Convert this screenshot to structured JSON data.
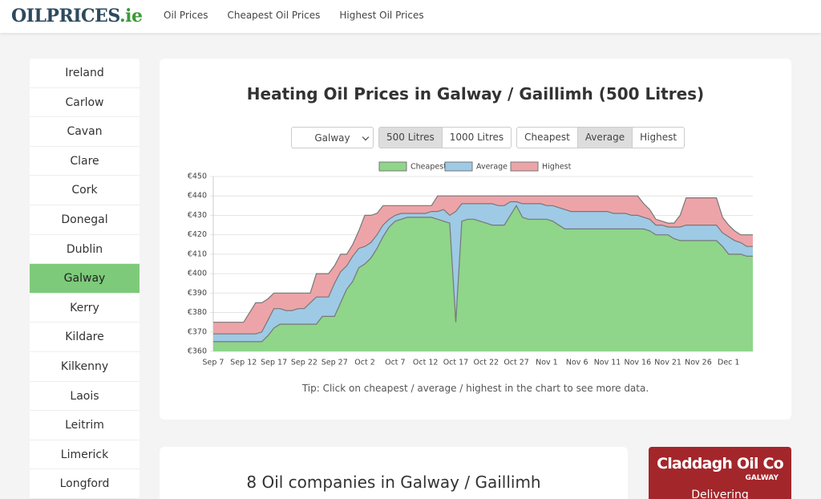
{
  "header": {
    "logo": {
      "main": "OILPRICES",
      "suffix": ".ie"
    },
    "nav": [
      "Oil Prices",
      "Cheapest Oil Prices",
      "Highest Oil Prices"
    ]
  },
  "sidebar": {
    "counties": [
      {
        "name": "Ireland"
      },
      {
        "name": "Carlow"
      },
      {
        "name": "Cavan"
      },
      {
        "name": "Clare"
      },
      {
        "name": "Cork"
      },
      {
        "name": "Donegal"
      },
      {
        "name": "Dublin"
      },
      {
        "name": "Galway",
        "active": true
      },
      {
        "name": "Kerry"
      },
      {
        "name": "Kildare"
      },
      {
        "name": "Kilkenny"
      },
      {
        "name": "Laois"
      },
      {
        "name": "Leitrim"
      },
      {
        "name": "Limerick"
      },
      {
        "name": "Longford"
      }
    ]
  },
  "controls": {
    "county_select": "Galway",
    "volume_buttons": [
      {
        "label": "500 Litres",
        "active": true
      },
      {
        "label": "1000 Litres"
      }
    ],
    "price_buttons": [
      {
        "label": "Cheapest"
      },
      {
        "label": "Average",
        "active": true
      },
      {
        "label": "Highest"
      }
    ]
  },
  "chart_data": {
    "type": "area",
    "title": "Heating Oil Prices in Galway / Gaillimh (500 Litres)",
    "categories": [
      "Sep 7",
      null,
      null,
      null,
      null,
      "Sep 12",
      null,
      null,
      null,
      null,
      "Sep 17",
      null,
      null,
      null,
      null,
      "Sep 22",
      null,
      null,
      null,
      null,
      "Sep 27",
      null,
      null,
      null,
      null,
      "Oct 2",
      null,
      null,
      null,
      null,
      "Oct 7",
      null,
      null,
      null,
      null,
      "Oct 12",
      null,
      null,
      null,
      null,
      "Oct 17",
      null,
      null,
      null,
      null,
      "Oct 22",
      null,
      null,
      null,
      null,
      "Oct 27",
      null,
      null,
      null,
      null,
      "Nov 1",
      null,
      null,
      null,
      null,
      "Nov 6",
      null,
      null,
      null,
      null,
      "Nov 11",
      null,
      null,
      null,
      null,
      "Nov 16",
      null,
      null,
      null,
      null,
      "Nov 21",
      null,
      null,
      null,
      null,
      "Nov 26",
      null,
      null,
      null,
      null,
      "Dec 1",
      null,
      null,
      null,
      null
    ],
    "series": [
      {
        "name": "Cheapest",
        "color": "#8fd58a",
        "values": [
          365,
          365,
          365,
          365,
          365,
          365,
          365,
          365,
          365,
          368,
          372,
          374,
          374,
          374,
          374,
          374,
          374,
          374,
          378,
          378,
          378,
          385,
          392,
          396,
          403,
          405,
          408,
          413,
          419,
          424,
          427,
          428,
          429,
          429,
          429,
          429,
          429,
          428,
          427,
          426,
          375,
          427,
          428,
          428,
          427,
          426,
          425,
          425,
          425,
          430,
          435,
          429,
          428,
          428,
          428,
          428,
          427,
          425,
          423,
          423,
          423,
          423,
          423,
          423,
          423,
          423,
          423,
          423,
          423,
          423,
          423,
          423,
          422,
          420,
          420,
          420,
          418,
          417,
          417,
          417,
          417,
          417,
          417,
          417,
          414,
          410,
          410,
          410,
          409,
          409
        ]
      },
      {
        "name": "Average",
        "color": "#9ecae6",
        "values": [
          369,
          369,
          369,
          369,
          369,
          369,
          369,
          369,
          370,
          376,
          382,
          382,
          381,
          381,
          382,
          382,
          385,
          388,
          388,
          388,
          395,
          401,
          404,
          409,
          413,
          414,
          416,
          420,
          425,
          428,
          430,
          431,
          431,
          431,
          431,
          431,
          432,
          432,
          433,
          430,
          432,
          436,
          436,
          436,
          436,
          436,
          436,
          435,
          435,
          437,
          437,
          436,
          436,
          436,
          436,
          435,
          435,
          434,
          433,
          432,
          432,
          432,
          432,
          432,
          432,
          432,
          431,
          431,
          431,
          430,
          430,
          429,
          428,
          425,
          425,
          424,
          424,
          424,
          425,
          425,
          425,
          425,
          425,
          425,
          421,
          419,
          417,
          416,
          414,
          414
        ]
      },
      {
        "name": "Highest",
        "color": "#eda4a8",
        "values": [
          375,
          375,
          375,
          375,
          375,
          375,
          380,
          385,
          385,
          387,
          390,
          390,
          390,
          390,
          390,
          390,
          390,
          400,
          400,
          400,
          404,
          410,
          410,
          415,
          422,
          430,
          430,
          431,
          435,
          435,
          435,
          435,
          435,
          435,
          435,
          435,
          435,
          440,
          440,
          440,
          440,
          440,
          440,
          440,
          440,
          440,
          440,
          440,
          440,
          440,
          440,
          440,
          440,
          440,
          440,
          440,
          440,
          440,
          440,
          440,
          440,
          440,
          440,
          440,
          440,
          440,
          440,
          440,
          440,
          440,
          440,
          436,
          433,
          428,
          427,
          426,
          426,
          430,
          439,
          439,
          439,
          439,
          439,
          439,
          429,
          425,
          422,
          420,
          420,
          420
        ]
      }
    ],
    "ylim": [
      360,
      450
    ],
    "yticks": [
      {
        "value": 360,
        "label": "€360"
      },
      {
        "value": 370,
        "label": "€370"
      },
      {
        "value": 380,
        "label": "€380"
      },
      {
        "value": 390,
        "label": "€390"
      },
      {
        "value": 400,
        "label": "€400"
      },
      {
        "value": 410,
        "label": "€410"
      },
      {
        "value": 420,
        "label": "€420"
      },
      {
        "value": 430,
        "label": "€430"
      },
      {
        "value": 440,
        "label": "€440"
      },
      {
        "value": 450,
        "label": "€450"
      }
    ],
    "grid": true,
    "legend": "top"
  },
  "tip": "Tip: Click on cheapest / average / highest in the chart to see more data.",
  "companies": {
    "title": "8 Oil companies in Galway / Gaillimh"
  },
  "ad": {
    "name": "Claddagh Oil Co",
    "place": "GALWAY",
    "text": "Delivering"
  }
}
